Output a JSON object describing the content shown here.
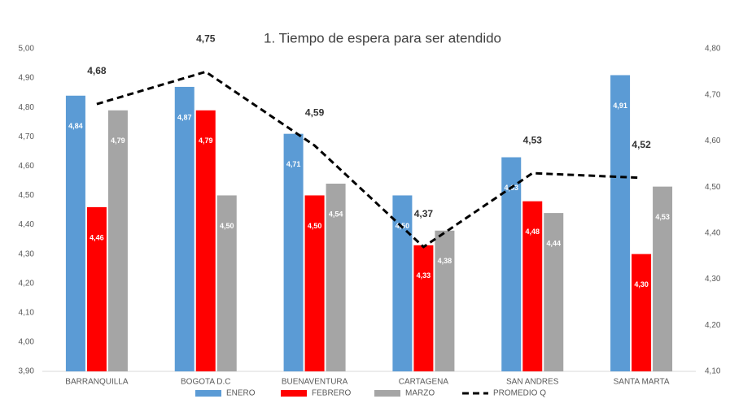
{
  "chart_data": {
    "type": "bar",
    "title": "1. Tiempo de espera para ser atendido",
    "categories": [
      "BARRANQUILLA",
      "BOGOTA D.C",
      "BUENAVENTURA",
      "CARTAGENA",
      "SAN ANDRES",
      "SANTA MARTA"
    ],
    "series": [
      {
        "name": "ENERO",
        "color": "#5b9bd5",
        "values": [
          4.84,
          4.87,
          4.71,
          4.5,
          4.63,
          4.91
        ],
        "value_labels": [
          "4,84",
          "4,87",
          "4,71",
          "4,50",
          "4,63",
          "4,91"
        ]
      },
      {
        "name": "FEBRERO",
        "color": "#ff0000",
        "values": [
          4.46,
          4.79,
          4.5,
          4.33,
          4.48,
          4.3
        ],
        "value_labels": [
          "4,46",
          "4,79",
          "4,50",
          "4,33",
          "4,48",
          "4,30"
        ]
      },
      {
        "name": "MARZO",
        "color": "#a5a5a5",
        "values": [
          4.79,
          4.5,
          4.54,
          4.38,
          4.44,
          4.53
        ],
        "value_labels": [
          "4,79",
          "4,50",
          "4,54",
          "4,38",
          "4,44",
          "4,53"
        ]
      },
      {
        "name": "PROMEDIO Q",
        "type": "line",
        "axis": "y2",
        "color": "#000000",
        "values": [
          4.68,
          4.75,
          4.59,
          4.37,
          4.53,
          4.52
        ],
        "value_labels": [
          "4,68",
          "4,75",
          "4,59",
          "4,37",
          "4,53",
          "4,52"
        ]
      }
    ],
    "ylim": [
      3.9,
      5.0
    ],
    "yticks": [
      {
        "value": 3.9,
        "label": "3,90"
      },
      {
        "value": 4.0,
        "label": "4,00"
      },
      {
        "value": 4.1,
        "label": "4,10"
      },
      {
        "value": 4.2,
        "label": "4,20"
      },
      {
        "value": 4.3,
        "label": "4,30"
      },
      {
        "value": 4.4,
        "label": "4,40"
      },
      {
        "value": 4.5,
        "label": "4,50"
      },
      {
        "value": 4.6,
        "label": "4,60"
      },
      {
        "value": 4.7,
        "label": "4,70"
      },
      {
        "value": 4.8,
        "label": "4,80"
      },
      {
        "value": 4.9,
        "label": "4,90"
      },
      {
        "value": 5.0,
        "label": "5,00"
      }
    ],
    "y2lim": [
      4.1,
      4.8
    ],
    "y2ticks": [
      {
        "value": 4.1,
        "label": "4,10"
      },
      {
        "value": 4.2,
        "label": "4,20"
      },
      {
        "value": 4.3,
        "label": "4,30"
      },
      {
        "value": 4.4,
        "label": "4,40"
      },
      {
        "value": 4.5,
        "label": "4,50"
      },
      {
        "value": 4.6,
        "label": "4,60"
      },
      {
        "value": 4.7,
        "label": "4,70"
      },
      {
        "value": 4.8,
        "label": "4,80"
      }
    ],
    "grid": false,
    "legend": "bottom"
  }
}
